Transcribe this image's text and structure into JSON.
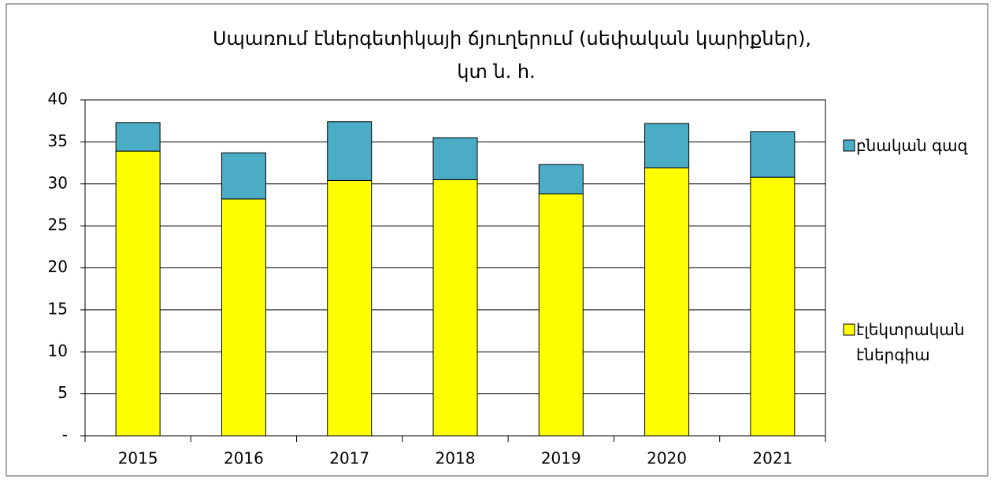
{
  "chart_data": {
    "type": "stacked_bar",
    "title": [
      "Սպառում էներգետիկայի ճյուղերում (սեփական կարիքներ),",
      "կտ ն. հ."
    ],
    "categories": [
      "2015",
      "2016",
      "2017",
      "2018",
      "2019",
      "2020",
      "2021"
    ],
    "series": [
      {
        "name": "էլեկտրական էներգիա",
        "color": "#ffff00",
        "values": [
          33.9,
          28.2,
          30.4,
          30.5,
          28.8,
          31.9,
          30.8
        ]
      },
      {
        "name": "բնական գազ",
        "color": "#4bacc6",
        "values": [
          3.4,
          5.5,
          7.0,
          5.0,
          3.5,
          5.3,
          5.4
        ]
      }
    ],
    "ylim": [
      0,
      40
    ],
    "yticks": [
      {
        "value": 0,
        "label": "-"
      },
      5,
      10,
      15,
      20,
      25,
      30,
      35,
      40
    ],
    "grid": true,
    "legend": "right"
  }
}
